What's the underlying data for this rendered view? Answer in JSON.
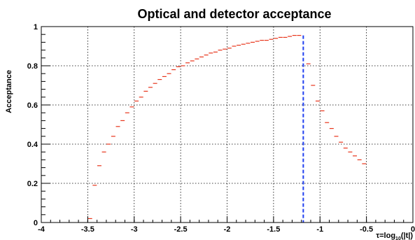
{
  "chart_data": {
    "type": "scatter",
    "title": "Optical and detector acceptance",
    "xlabel": "τ=log",
    "xlabel_sub": "10",
    "xlabel_tail": "(|t|)",
    "ylabel": "Acceptance",
    "xlim": [
      -4,
      0
    ],
    "ylim": [
      0,
      1
    ],
    "x_ticks": [
      "-4",
      "-3.5",
      "-3",
      "-2.5",
      "-2",
      "-1.5",
      "-1",
      "-0.5",
      "0"
    ],
    "y_ticks": [
      "0",
      "0.2",
      "0.4",
      "0.6",
      "0.8",
      "1"
    ],
    "grid": true,
    "bin_width": 0.05,
    "series": [
      {
        "color": "#e8361c",
        "x": [
          -3.475,
          -3.425,
          -3.375,
          -3.325,
          -3.275,
          -3.225,
          -3.175,
          -3.125,
          -3.075,
          -3.025,
          -2.975,
          -2.925,
          -2.875,
          -2.825,
          -2.775,
          -2.725,
          -2.675,
          -2.625,
          -2.575,
          -2.525,
          -2.475,
          -2.425,
          -2.375,
          -2.325,
          -2.275,
          -2.225,
          -2.175,
          -2.125,
          -2.075,
          -2.025,
          -1.975,
          -1.925,
          -1.875,
          -1.825,
          -1.775,
          -1.725,
          -1.675,
          -1.625,
          -1.575,
          -1.525,
          -1.475,
          -1.425,
          -1.375,
          -1.325,
          -1.275,
          -1.225,
          -1.125,
          -1.075,
          -1.025,
          -0.975,
          -0.925,
          -0.875,
          -0.825,
          -0.775,
          -0.725,
          -0.675,
          -0.625,
          -0.575,
          -0.525
        ],
        "y": [
          0.02,
          0.19,
          0.29,
          0.36,
          0.4,
          0.44,
          0.49,
          0.52,
          0.56,
          0.59,
          0.62,
          0.64,
          0.67,
          0.69,
          0.71,
          0.73,
          0.745,
          0.76,
          0.78,
          0.795,
          0.8,
          0.815,
          0.825,
          0.835,
          0.845,
          0.855,
          0.865,
          0.87,
          0.88,
          0.885,
          0.89,
          0.9,
          0.905,
          0.91,
          0.915,
          0.92,
          0.925,
          0.93,
          0.93,
          0.935,
          0.94,
          0.945,
          0.945,
          0.95,
          0.955,
          0.955,
          0.81,
          0.7,
          0.62,
          0.57,
          0.51,
          0.48,
          0.44,
          0.41,
          0.38,
          0.36,
          0.34,
          0.32,
          0.3
        ]
      }
    ],
    "cut_line": {
      "x": -1.18,
      "color": "#1f3ff0"
    }
  }
}
